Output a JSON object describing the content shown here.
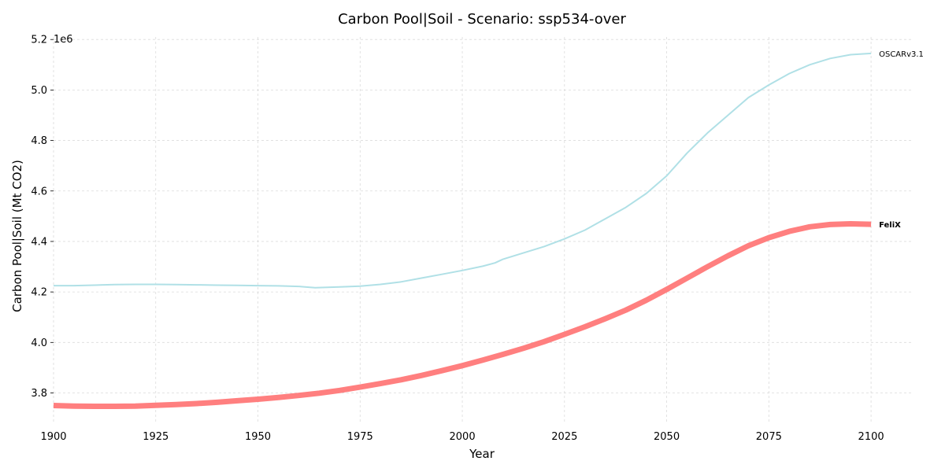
{
  "chart_data": {
    "type": "line",
    "title": "Carbon Pool|Soil - Scenario: ssp534-over",
    "xlabel": "Year",
    "ylabel": "Carbon Pool|Soil (Mt CO2)",
    "y_scale_label": "1e6",
    "xlim": [
      1900,
      2110
    ],
    "ylim": [
      3680000,
      5210000
    ],
    "x_ticks": [
      1900,
      1925,
      1950,
      1975,
      2000,
      2025,
      2050,
      2075,
      2100
    ],
    "x_tick_labels": [
      "1900",
      "1925",
      "1950",
      "1975",
      "2000",
      "2025",
      "2050",
      "2075",
      "2100"
    ],
    "y_ticks": [
      3800000,
      4000000,
      4200000,
      4400000,
      4600000,
      4800000,
      5000000,
      5200000
    ],
    "y_tick_labels": [
      "3.8",
      "4.0",
      "4.2",
      "4.4",
      "4.6",
      "4.8",
      "5.0",
      "5.2"
    ],
    "grid": true,
    "series": [
      {
        "name": "OSCARv3.1",
        "color": "#b0e0e6",
        "label_bold": false,
        "x": [
          1900,
          1905,
          1910,
          1915,
          1920,
          1925,
          1930,
          1935,
          1940,
          1945,
          1950,
          1955,
          1960,
          1964,
          1970,
          1975,
          1980,
          1985,
          1990,
          1995,
          2000,
          2005,
          2008,
          2010,
          2015,
          2020,
          2025,
          2030,
          2035,
          2040,
          2045,
          2050,
          2055,
          2060,
          2065,
          2070,
          2075,
          2080,
          2085,
          2090,
          2095,
          2100
        ],
        "values": [
          4225000,
          4225000,
          4227000,
          4229000,
          4230000,
          4230000,
          4229000,
          4228000,
          4227000,
          4226000,
          4225000,
          4224000,
          4222000,
          4217000,
          4220000,
          4223000,
          4230000,
          4240000,
          4255000,
          4270000,
          4285000,
          4302000,
          4315000,
          4330000,
          4355000,
          4380000,
          4410000,
          4445000,
          4490000,
          4535000,
          4590000,
          4660000,
          4750000,
          4830000,
          4900000,
          4970000,
          5020000,
          5065000,
          5100000,
          5125000,
          5140000,
          5145000
        ]
      },
      {
        "name": "FeliX",
        "color": "#ff7f7f",
        "label_bold": true,
        "x": [
          1900,
          1905,
          1910,
          1915,
          1920,
          1925,
          1930,
          1935,
          1940,
          1945,
          1950,
          1955,
          1960,
          1965,
          1970,
          1975,
          1980,
          1985,
          1990,
          1995,
          2000,
          2005,
          2010,
          2015,
          2020,
          2025,
          2030,
          2035,
          2040,
          2045,
          2050,
          2055,
          2060,
          2065,
          2070,
          2075,
          2080,
          2085,
          2090,
          2095,
          2100
        ],
        "values": [
          3750000,
          3748000,
          3747000,
          3747000,
          3748000,
          3751000,
          3754000,
          3758000,
          3763000,
          3769000,
          3775000,
          3782000,
          3790000,
          3799000,
          3810000,
          3823000,
          3837000,
          3852000,
          3869000,
          3888000,
          3908000,
          3930000,
          3953000,
          3977000,
          4003000,
          4032000,
          4062000,
          4094000,
          4128000,
          4167000,
          4210000,
          4255000,
          4300000,
          4343000,
          4383000,
          4415000,
          4440000,
          4458000,
          4467000,
          4470000,
          4468000
        ]
      }
    ]
  }
}
